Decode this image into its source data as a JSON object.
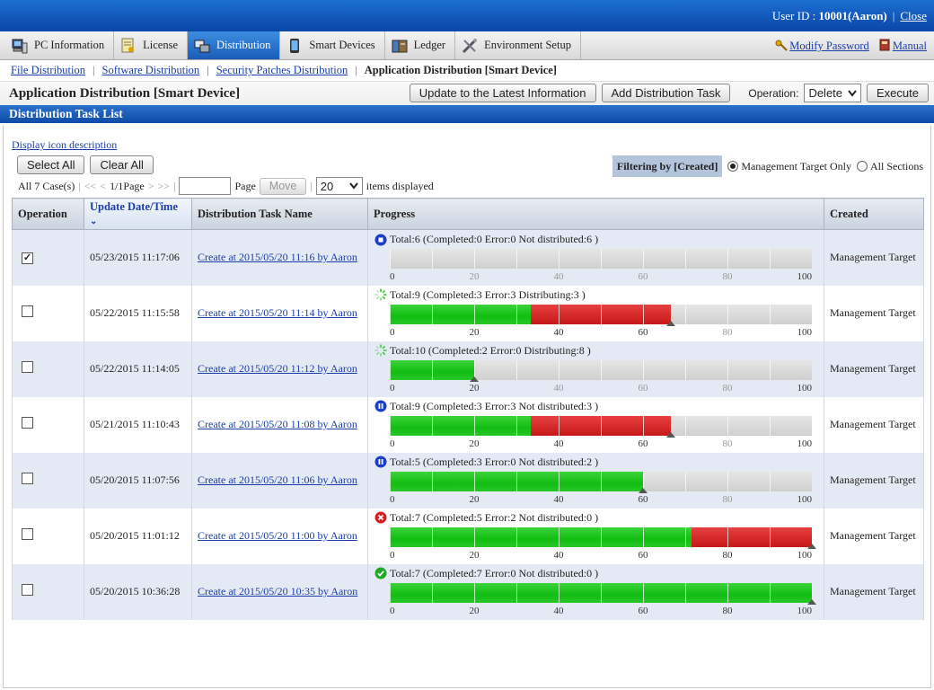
{
  "header": {
    "user_label": "User ID :",
    "user_id": "10001(Aaron)",
    "close": "Close"
  },
  "tabs": [
    {
      "label": "PC Information",
      "icon": "pc-icon",
      "active": false
    },
    {
      "label": "License",
      "icon": "license-icon",
      "active": false
    },
    {
      "label": "Distribution",
      "icon": "distribution-icon",
      "active": true
    },
    {
      "label": "Smart Devices",
      "icon": "smartphone-icon",
      "active": false
    },
    {
      "label": "Ledger",
      "icon": "ledger-icon",
      "active": false
    },
    {
      "label": "Environment Setup",
      "icon": "tools-icon",
      "active": false
    }
  ],
  "top_links": {
    "modify_password": "Modify Password",
    "manual": "Manual"
  },
  "subnav": {
    "items": [
      "File Distribution",
      "Software Distribution",
      "Security Patches Distribution"
    ],
    "current": "Application Distribution [Smart Device]"
  },
  "page": {
    "title": "Application Distribution [Smart Device]",
    "update_btn": "Update to the Latest Information",
    "add_btn": "Add Distribution Task",
    "operation_label": "Operation:",
    "operation_value": "Delete",
    "execute_btn": "Execute"
  },
  "section": {
    "title": "Distribution Task List"
  },
  "list": {
    "icon_desc": "Display icon description",
    "select_all": "Select All",
    "clear_all": "Clear All",
    "cases": "All 7 Case(s)",
    "first": "<<",
    "prev": "<",
    "page_info": "1/1Page",
    "next": ">",
    "last": ">>",
    "page_label": "Page",
    "move_btn": "Move",
    "per_page": "20",
    "items_displayed": "items displayed",
    "filter_label": "Filtering by [Created]",
    "filter_opt1": "Management Target Only",
    "filter_opt2": "All Sections",
    "filter_selected": "Management Target Only"
  },
  "columns": [
    "Operation",
    "Update Date/Time",
    "Distribution Task Name",
    "Progress",
    "Created"
  ],
  "axis_ticks": [
    "0",
    "20",
    "40",
    "60",
    "80",
    "100"
  ],
  "rows": [
    {
      "checked": true,
      "date": "05/23/2015 11:17:06",
      "name": "Create at 2015/05/20 11:16 by Aaron",
      "status": "stopped",
      "summary": "Total:6  (Completed:0  Error:0  Not distributed:6 )",
      "completed_pct": 0,
      "error_pct": 0,
      "created": "Management Target"
    },
    {
      "checked": false,
      "date": "05/22/2015 11:15:58",
      "name": "Create at 2015/05/20 11:14 by Aaron",
      "status": "in-progress",
      "summary": "Total:9  (Completed:3  Error:3  Distributing:3 )",
      "completed_pct": 33.3,
      "error_pct": 33.3,
      "created": "Management Target"
    },
    {
      "checked": false,
      "date": "05/22/2015 11:14:05",
      "name": "Create at 2015/05/20 11:12 by Aaron",
      "status": "in-progress",
      "summary": "Total:10  (Completed:2  Error:0  Distributing:8 )",
      "completed_pct": 20,
      "error_pct": 0,
      "created": "Management Target"
    },
    {
      "checked": false,
      "date": "05/21/2015 11:10:43",
      "name": "Create at 2015/05/20 11:08 by Aaron",
      "status": "paused",
      "summary": "Total:9  (Completed:3  Error:3  Not distributed:3 )",
      "completed_pct": 33.3,
      "error_pct": 33.3,
      "created": "Management Target"
    },
    {
      "checked": false,
      "date": "05/20/2015 11:07:56",
      "name": "Create at 2015/05/20 11:06 by Aaron",
      "status": "paused",
      "summary": "Total:5  (Completed:3  Error:0  Not distributed:2 )",
      "completed_pct": 60,
      "error_pct": 0,
      "created": "Management Target"
    },
    {
      "checked": false,
      "date": "05/20/2015 11:01:12",
      "name": "Create at 2015/05/20 11:00 by Aaron",
      "status": "error",
      "summary": "Total:7  (Completed:5  Error:2  Not distributed:0 )",
      "completed_pct": 71.4,
      "error_pct": 28.6,
      "created": "Management Target"
    },
    {
      "checked": false,
      "date": "05/20/2015 10:36:28",
      "name": "Create at 2015/05/20 10:35 by Aaron",
      "status": "completed",
      "summary": "Total:7  (Completed:7  Error:0  Not distributed:0 )",
      "completed_pct": 100,
      "error_pct": 0,
      "created": "Management Target"
    }
  ]
}
